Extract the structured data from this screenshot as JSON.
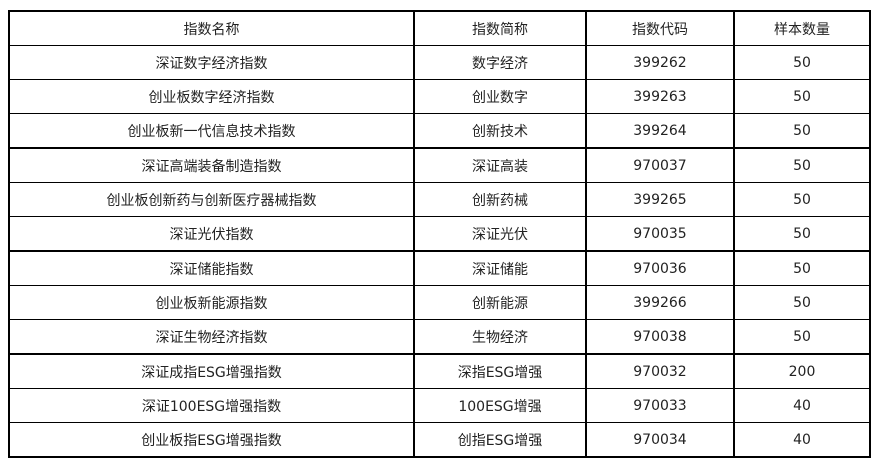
{
  "table": {
    "headers": [
      "指数名称",
      "指数简称",
      "指数代码",
      "样本数量"
    ],
    "rows": [
      [
        "深证数字经济指数",
        "数字经济",
        "399262",
        "50"
      ],
      [
        "创业板数字经济指数",
        "创业数字",
        "399263",
        "50"
      ],
      [
        "创业板新一代信息技术指数",
        "创新技术",
        "399264",
        "50"
      ],
      [
        "深证高端装备制造指数",
        "深证高装",
        "970037",
        "50"
      ],
      [
        "创业板创新药与创新医疗器械指数",
        "创新药械",
        "399265",
        "50"
      ],
      [
        "深证光伏指数",
        "深证光伏",
        "970035",
        "50"
      ],
      [
        "深证储能指数",
        "深证储能",
        "970036",
        "50"
      ],
      [
        "创业板新能源指数",
        "创新能源",
        "399266",
        "50"
      ],
      [
        "深证生物经济指数",
        "生物经济",
        "970038",
        "50"
      ],
      [
        "深证成指ESG增强指数",
        "深指ESG增强",
        "970032",
        "200"
      ],
      [
        "深证100ESG增强指数",
        "100ESG增强",
        "970033",
        "40"
      ],
      [
        "创业板指ESG增强指数",
        "创指ESG增强",
        "970034",
        "40"
      ]
    ]
  }
}
